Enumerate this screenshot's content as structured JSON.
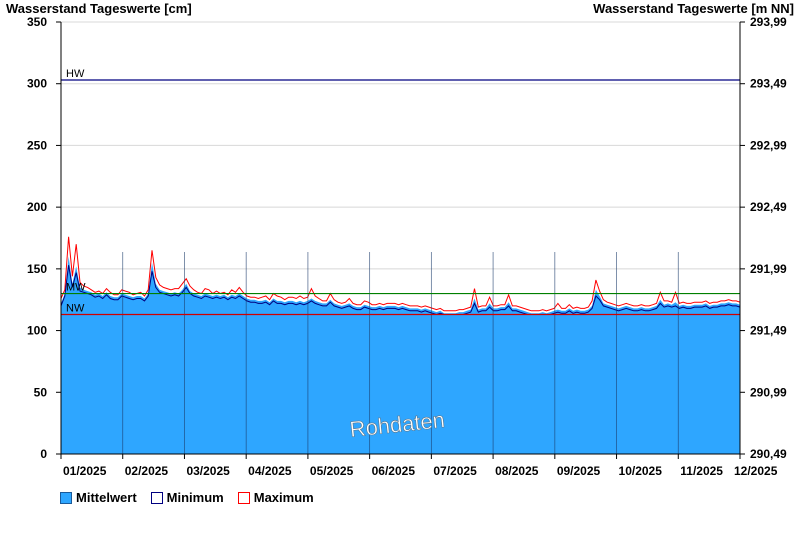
{
  "titles": {
    "left": "Wasserstand Tageswerte [cm]",
    "right": "Wasserstand Tageswerte [m NN]"
  },
  "watermark": "Rohdaten",
  "colors": {
    "mean_fill": "#2ea6ff",
    "min_line": "#000080",
    "max_line": "#ff0000",
    "hw_line": "#000080",
    "mw_line": "#008000",
    "nw_line": "#d00000",
    "grid": "#d8d8d8",
    "month_line": "#1a3a6a"
  },
  "chart_data": {
    "type": "area",
    "ylim": [
      0,
      350
    ],
    "y_ticks": [
      0,
      50,
      100,
      150,
      200,
      250,
      300,
      350
    ],
    "y_tick_labels": [
      "0",
      "50",
      "100",
      "150",
      "200",
      "250",
      "300",
      "350"
    ],
    "y2_ticks": [
      290.49,
      290.99,
      291.49,
      291.99,
      292.49,
      292.99,
      293.49,
      293.99
    ],
    "y2_tick_labels": [
      "290,49",
      "290,99",
      "291,49",
      "291,99",
      "292,49",
      "292,99",
      "293,49",
      "293,99"
    ],
    "x_labels": [
      "01/2025",
      "02/2025",
      "03/2025",
      "04/2025",
      "05/2025",
      "06/2025",
      "07/2025",
      "08/2025",
      "09/2025",
      "10/2025",
      "11/2025",
      "12/2025"
    ],
    "reference_lines": [
      {
        "label": "HW",
        "value": 303
      },
      {
        "label": "MW",
        "value": 130
      },
      {
        "label": "NW",
        "value": 113
      }
    ],
    "series": [
      {
        "name": "Mittelwert",
        "values": [
          122,
          130,
          160,
          138,
          152,
          135,
          133,
          132,
          131,
          129,
          130,
          128,
          131,
          128,
          127,
          127,
          130,
          129,
          128,
          127,
          128,
          128,
          126,
          130,
          155,
          138,
          133,
          132,
          131,
          130,
          131,
          130,
          133,
          138,
          132,
          130,
          129,
          128,
          130,
          129,
          128,
          129,
          128,
          129,
          127,
          129,
          128,
          130,
          128,
          126,
          125,
          125,
          124,
          124,
          125,
          123,
          126,
          124,
          124,
          123,
          124,
          124,
          123,
          124,
          123,
          124,
          126,
          124,
          123,
          122,
          122,
          125,
          122,
          121,
          120,
          121,
          122,
          120,
          119,
          119,
          121,
          120,
          119,
          119,
          120,
          119,
          120,
          120,
          120,
          119,
          120,
          119,
          118,
          118,
          118,
          117,
          118,
          117,
          116,
          115,
          116,
          114,
          114,
          114,
          114,
          115,
          115,
          116,
          117,
          126,
          117,
          118,
          118,
          122,
          118,
          118,
          119,
          119,
          123,
          118,
          118,
          117,
          116,
          115,
          114,
          114,
          114,
          115,
          114,
          115,
          116,
          117,
          116,
          116,
          118,
          116,
          117,
          116,
          116,
          117,
          120,
          133,
          128,
          122,
          121,
          120,
          119,
          118,
          119,
          120,
          119,
          118,
          118,
          119,
          118,
          118,
          119,
          120,
          125,
          121,
          122,
          121,
          123,
          120,
          121,
          120,
          120,
          121,
          121,
          121,
          122,
          120,
          121,
          121,
          122,
          122,
          123,
          122,
          122,
          121
        ]
      },
      {
        "name": "Minimum",
        "values": [
          120,
          128,
          153,
          135,
          147,
          132,
          131,
          130,
          129,
          127,
          128,
          126,
          129,
          126,
          125,
          125,
          128,
          127,
          126,
          125,
          126,
          126,
          124,
          128,
          148,
          135,
          131,
          130,
          129,
          128,
          129,
          128,
          131,
          135,
          130,
          128,
          127,
          126,
          128,
          127,
          126,
          127,
          126,
          127,
          125,
          127,
          126,
          128,
          126,
          124,
          123,
          123,
          122,
          122,
          123,
          121,
          124,
          122,
          122,
          121,
          122,
          122,
          121,
          122,
          121,
          122,
          124,
          122,
          121,
          120,
          120,
          123,
          120,
          119,
          118,
          119,
          120,
          118,
          117,
          117,
          119,
          118,
          117,
          117,
          118,
          117,
          118,
          118,
          118,
          117,
          118,
          117,
          116,
          116,
          116,
          115,
          116,
          115,
          114,
          113,
          114,
          113,
          113,
          113,
          113,
          113,
          113,
          114,
          115,
          122,
          115,
          116,
          116,
          119,
          116,
          116,
          117,
          117,
          120,
          116,
          116,
          115,
          114,
          113,
          113,
          113,
          113,
          113,
          113,
          113,
          114,
          115,
          114,
          114,
          116,
          114,
          115,
          114,
          114,
          115,
          118,
          128,
          125,
          120,
          119,
          118,
          117,
          116,
          117,
          118,
          117,
          116,
          116,
          117,
          116,
          116,
          117,
          118,
          122,
          119,
          120,
          119,
          120,
          118,
          119,
          118,
          118,
          119,
          119,
          119,
          120,
          118,
          119,
          119,
          120,
          120,
          121,
          120,
          120,
          119
        ]
      },
      {
        "name": "Maximum",
        "values": [
          126,
          133,
          176,
          144,
          170,
          139,
          136,
          135,
          133,
          131,
          132,
          130,
          134,
          131,
          129,
          129,
          133,
          132,
          131,
          129,
          130,
          131,
          128,
          133,
          165,
          143,
          137,
          135,
          134,
          133,
          134,
          134,
          138,
          142,
          136,
          133,
          131,
          130,
          134,
          133,
          130,
          132,
          130,
          131,
          129,
          133,
          131,
          135,
          131,
          128,
          127,
          127,
          126,
          127,
          128,
          125,
          130,
          128,
          127,
          125,
          127,
          127,
          126,
          128,
          126,
          127,
          134,
          128,
          126,
          124,
          124,
          130,
          125,
          123,
          122,
          123,
          126,
          122,
          121,
          121,
          124,
          123,
          121,
          121,
          122,
          121,
          122,
          122,
          122,
          121,
          122,
          121,
          120,
          120,
          120,
          119,
          120,
          119,
          118,
          117,
          118,
          116,
          116,
          116,
          116,
          117,
          117,
          118,
          119,
          134,
          119,
          120,
          120,
          127,
          120,
          120,
          121,
          121,
          129,
          120,
          120,
          119,
          118,
          117,
          116,
          116,
          116,
          117,
          116,
          117,
          118,
          122,
          118,
          118,
          121,
          118,
          119,
          118,
          118,
          119,
          124,
          141,
          132,
          125,
          123,
          122,
          121,
          120,
          121,
          122,
          121,
          120,
          120,
          121,
          120,
          120,
          121,
          122,
          131,
          124,
          124,
          123,
          131,
          122,
          123,
          122,
          122,
          123,
          123,
          123,
          124,
          122,
          123,
          123,
          124,
          124,
          125,
          124,
          124,
          123
        ]
      }
    ]
  }
}
